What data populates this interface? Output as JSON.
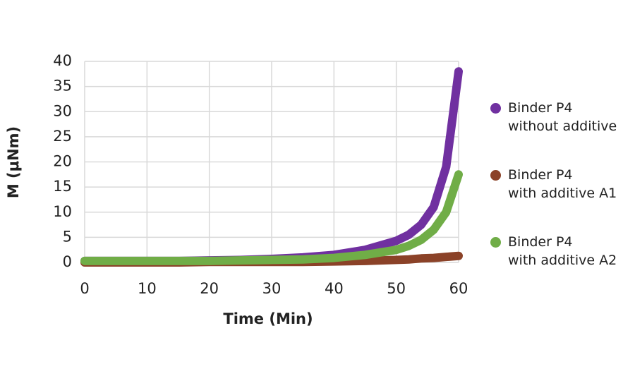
{
  "chart_data": {
    "type": "line",
    "x_label": "Time (Min)",
    "y_label": "M (μNm)",
    "x": [
      0,
      5,
      10,
      15,
      20,
      25,
      30,
      35,
      40,
      45,
      50,
      52,
      54,
      56,
      58,
      60
    ],
    "series": [
      {
        "name": "Binder P4\nwithout additive",
        "color": "#7030a0",
        "values": [
          0.3,
          0.3,
          0.3,
          0.3,
          0.4,
          0.5,
          0.7,
          1.0,
          1.5,
          2.5,
          4.3,
          5.5,
          7.5,
          11,
          19,
          38
        ]
      },
      {
        "name": "Binder P4\nwith additive A1",
        "color": "#8b4228",
        "values": [
          0,
          0,
          0,
          0,
          0.1,
          0.1,
          0.1,
          0.1,
          0.2,
          0.3,
          0.5,
          0.6,
          0.8,
          0.9,
          1.1,
          1.3
        ]
      },
      {
        "name": "Binder P4\nwith additive A2",
        "color": "#70ad47",
        "values": [
          0.3,
          0.3,
          0.3,
          0.3,
          0.3,
          0.4,
          0.5,
          0.6,
          0.9,
          1.5,
          2.5,
          3.3,
          4.5,
          6.5,
          10,
          17.5
        ]
      }
    ],
    "xlim": [
      0,
      60
    ],
    "xticks": [
      0,
      10,
      20,
      30,
      40,
      50,
      60
    ],
    "ylim": [
      0,
      40
    ],
    "yticks": [
      0,
      5,
      10,
      15,
      20,
      25,
      30,
      35,
      40
    ],
    "grid": true,
    "legend": "right"
  }
}
